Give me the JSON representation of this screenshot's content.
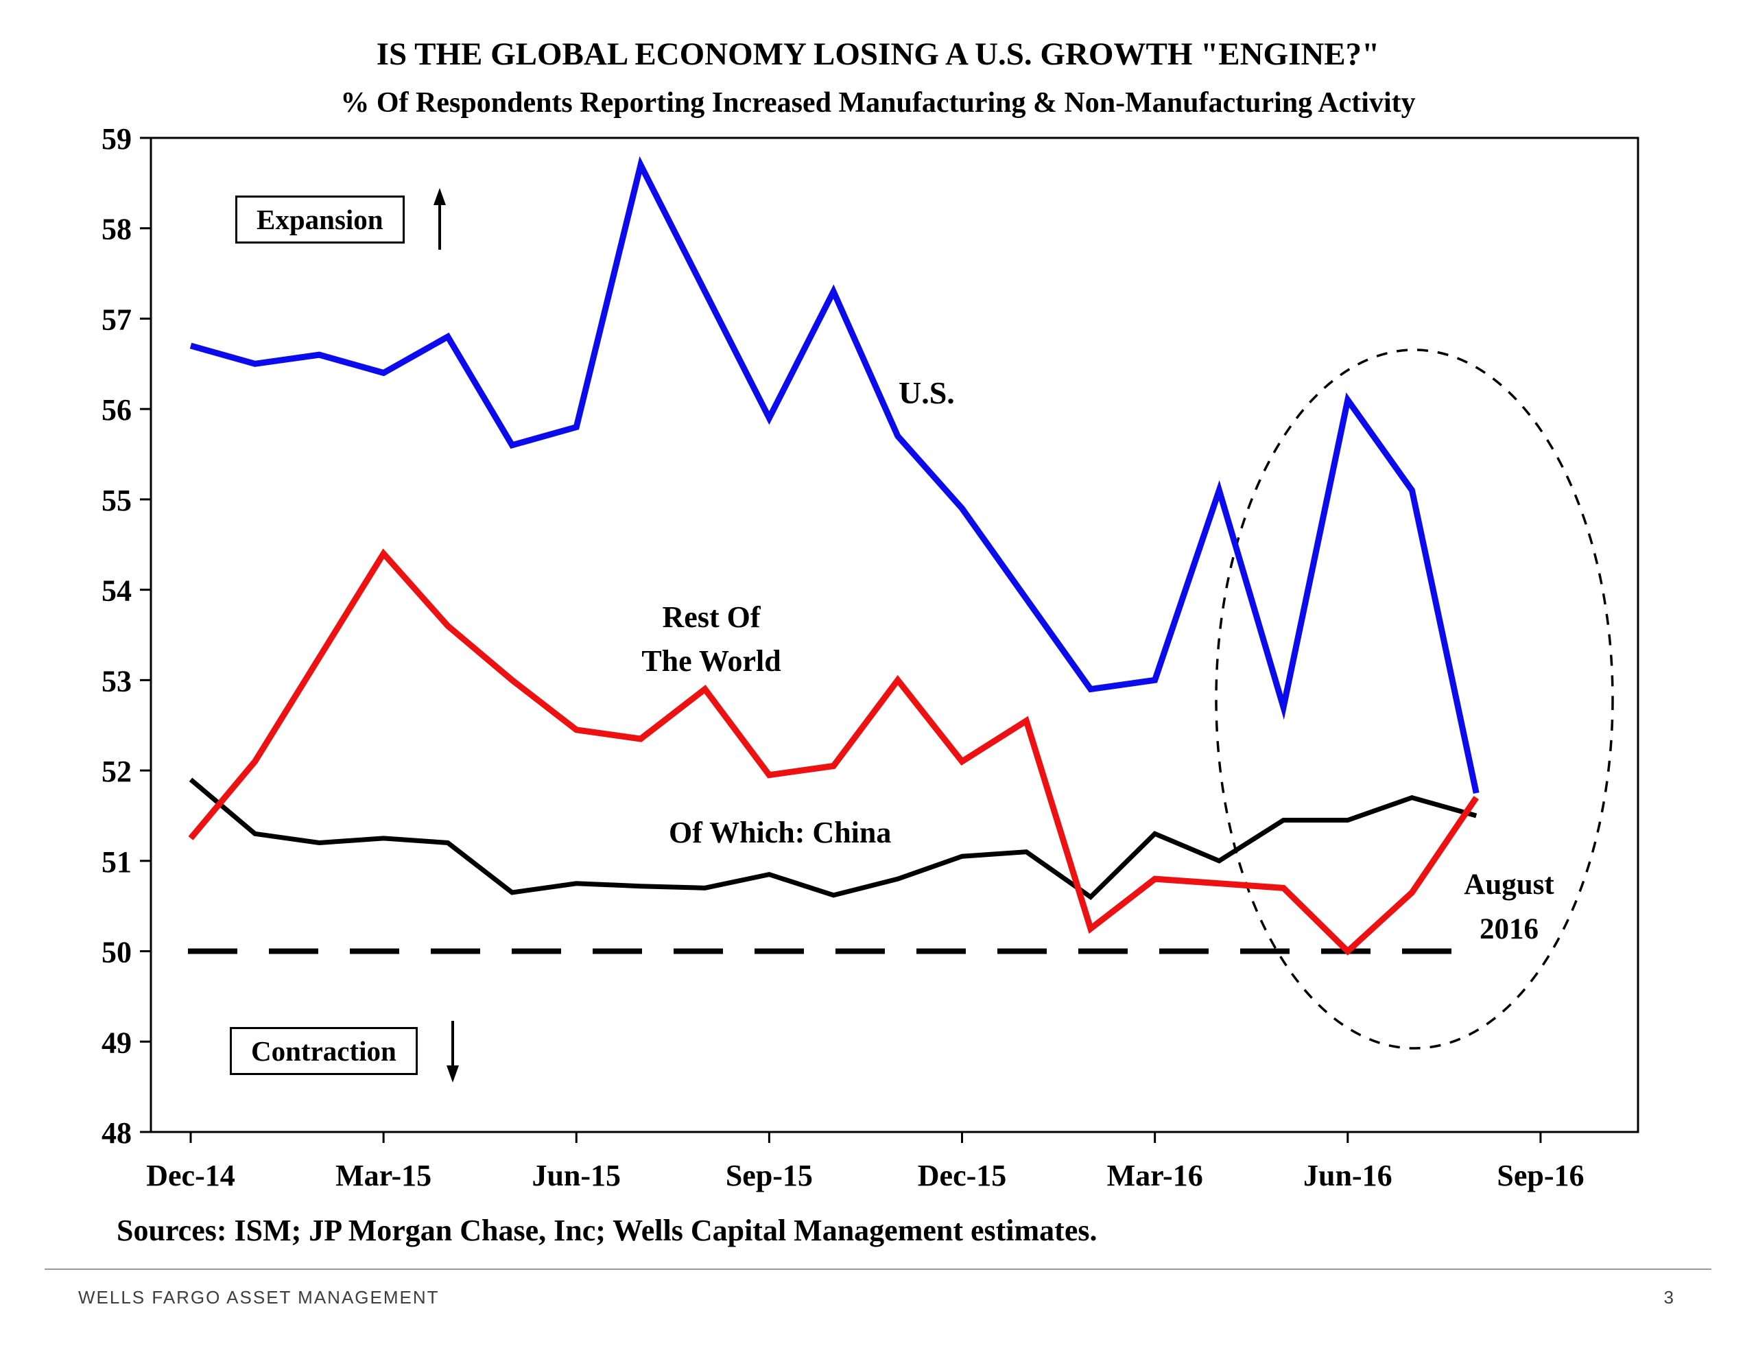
{
  "chart_data": {
    "type": "line",
    "title": "IS THE GLOBAL ECONOMY LOSING A U.S. GROWTH \"ENGINE?\"",
    "subtitle": "% Of Respondents Reporting Increased Manufacturing & Non-Manufacturing Activity",
    "x": [
      "Dec-14",
      "Jan-15",
      "Feb-15",
      "Mar-15",
      "Apr-15",
      "May-15",
      "Jun-15",
      "Jul-15",
      "Aug-15",
      "Sep-15",
      "Oct-15",
      "Nov-15",
      "Dec-15",
      "Jan-16",
      "Feb-16",
      "Mar-16",
      "Apr-16",
      "May-16",
      "Jun-16",
      "Jul-16",
      "Aug-16"
    ],
    "x_tick_labels": [
      "Dec-14",
      "Mar-15",
      "Jun-15",
      "Sep-15",
      "Dec-15",
      "Mar-16",
      "Jun-16",
      "Sep-16"
    ],
    "x_tick_indices": [
      0,
      3,
      6,
      9,
      12,
      15,
      18,
      21
    ],
    "ylim": [
      48,
      59
    ],
    "y_ticks": [
      48,
      49,
      50,
      51,
      52,
      53,
      54,
      55,
      56,
      57,
      58,
      59
    ],
    "threshold_value": 50,
    "grid": false,
    "legend_position": "inline-labels",
    "series": [
      {
        "name": "U.S.",
        "color": "#0b0bee",
        "values": [
          56.7,
          56.5,
          56.6,
          56.4,
          56.8,
          55.6,
          55.8,
          58.7,
          57.3,
          55.9,
          57.3,
          55.7,
          54.9,
          53.9,
          52.9,
          53.0,
          55.1,
          52.7,
          56.1,
          55.1,
          51.75
        ]
      },
      {
        "name": "Rest Of The World",
        "color": "#ed1111",
        "values": [
          51.25,
          52.1,
          53.25,
          54.4,
          53.6,
          53.0,
          52.45,
          52.35,
          52.9,
          51.95,
          52.05,
          53.0,
          52.1,
          52.55,
          50.25,
          50.8,
          50.75,
          50.7,
          50.0,
          50.65,
          51.7
        ]
      },
      {
        "name": "Of Which: China",
        "color": "#000000",
        "values": [
          51.9,
          51.3,
          51.2,
          51.25,
          51.2,
          50.65,
          50.75,
          50.72,
          50.7,
          50.85,
          50.62,
          50.8,
          51.05,
          51.1,
          50.6,
          51.3,
          51.0,
          51.45,
          51.45,
          51.7,
          51.5
        ]
      }
    ]
  },
  "annotations": {
    "expansion": "Expansion",
    "contraction": "Contraction",
    "us": "U.S.",
    "rest_of_world": "Rest Of\nThe World",
    "china": "Of Which: China",
    "august": "August\n2016"
  },
  "sources": "Sources: ISM; JP Morgan Chase, Inc; Wells Capital Management estimates.",
  "footer": {
    "brand": "WELLS FARGO ASSET MANAGEMENT",
    "page_number": "3"
  }
}
